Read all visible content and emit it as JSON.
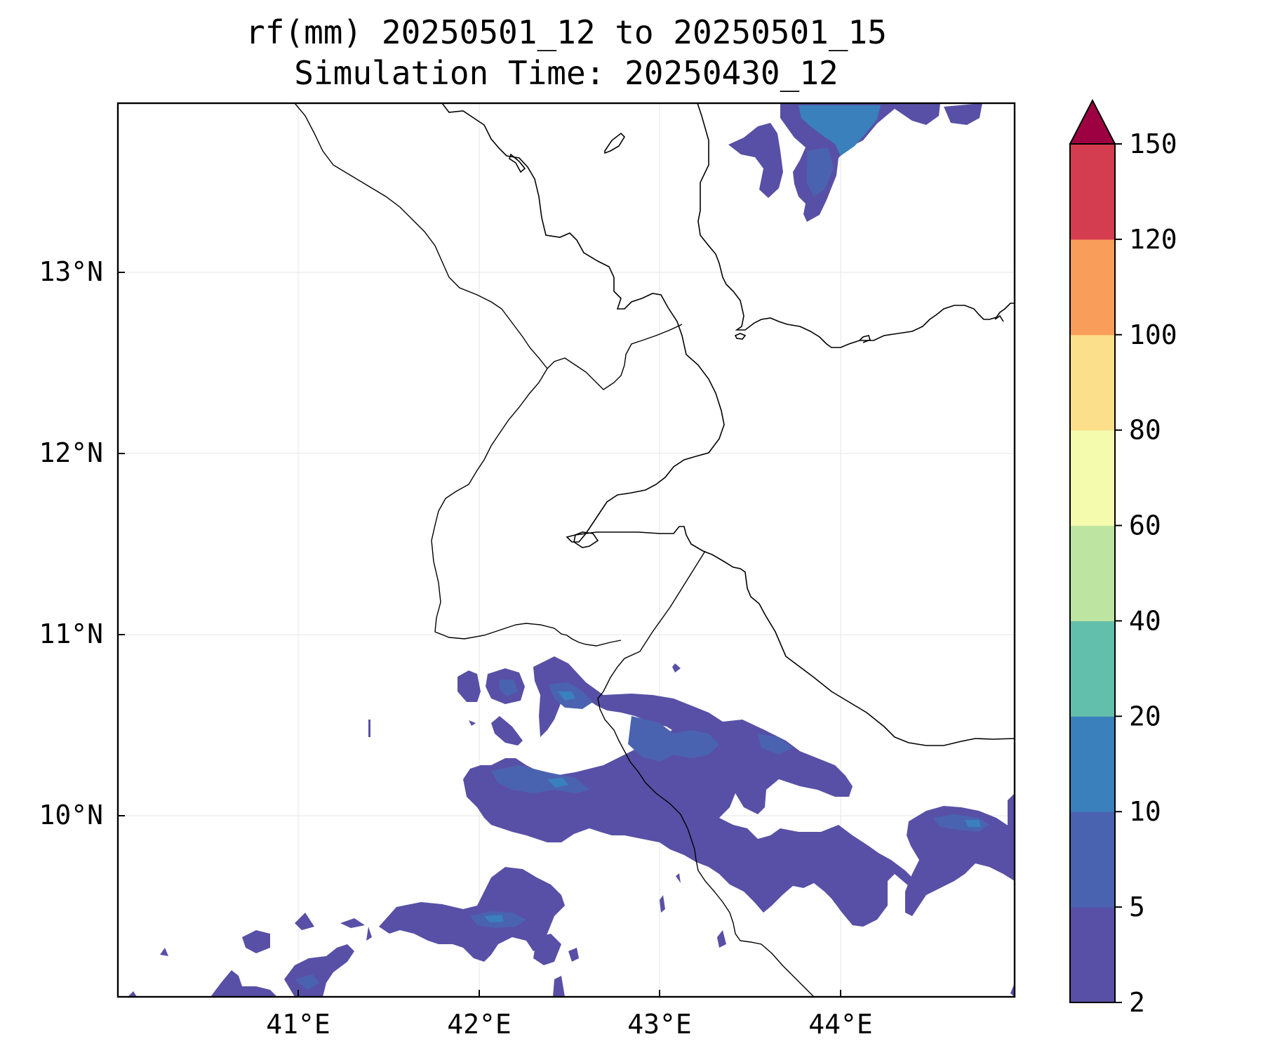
{
  "title": {
    "line1": "rf(mm) 20250501_12 to 20250501_15",
    "line2": "Simulation Time: 20250430_12"
  },
  "map": {
    "lon_range": [
      40.0,
      44.97
    ],
    "lat_range": [
      9.03,
      13.96
    ],
    "lon_ticks": [
      {
        "value": 41,
        "label": "41°E"
      },
      {
        "value": 42,
        "label": "42°E"
      },
      {
        "value": 43,
        "label": "43°E"
      },
      {
        "value": 44,
        "label": "44°E"
      }
    ],
    "lat_ticks": [
      {
        "value": 10,
        "label": "10°N"
      },
      {
        "value": 11,
        "label": "11°N"
      },
      {
        "value": 12,
        "label": "12°N"
      },
      {
        "value": 13,
        "label": "13°N"
      }
    ],
    "grid": true
  },
  "colorbar": {
    "levels": [
      {
        "value": 2,
        "label": "2"
      },
      {
        "value": 5,
        "label": "5"
      },
      {
        "value": 10,
        "label": "10"
      },
      {
        "value": 20,
        "label": "20"
      },
      {
        "value": 40,
        "label": "40"
      },
      {
        "value": 60,
        "label": "60"
      },
      {
        "value": 80,
        "label": "80"
      },
      {
        "value": 100,
        "label": "100"
      },
      {
        "value": 120,
        "label": "120"
      },
      {
        "value": 150,
        "label": "150"
      }
    ],
    "colors": [
      "#5850a6",
      "#4a63b0",
      "#3a80bd",
      "#62bfab",
      "#bde4a0",
      "#f5fbad",
      "#fcdf8b",
      "#f99d5a",
      "#d43d4f"
    ],
    "extend_color": "#9e0142",
    "extend": "max"
  },
  "colors": {
    "rain_2_5": "#5850a6",
    "rain_5_10": "#4a63b0",
    "rain_10_20": "#3a80bd"
  }
}
